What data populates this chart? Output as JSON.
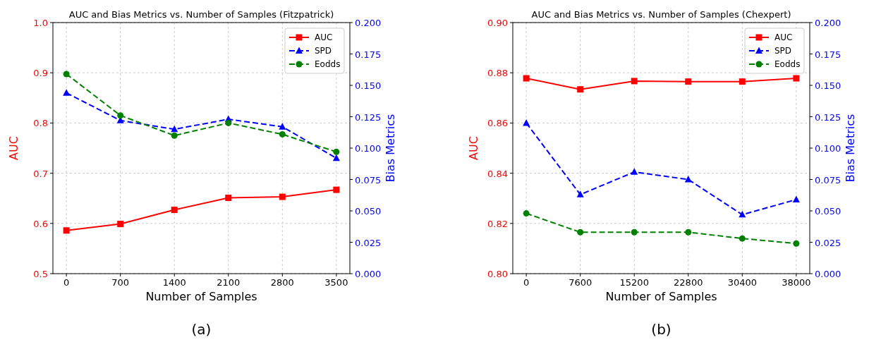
{
  "chart_data": [
    {
      "type": "line",
      "title": "AUC and Bias Metrics vs. Number of Samples (Fitzpatrick)",
      "xlabel": "Number of Samples",
      "ylabel": "AUC",
      "y2label": "Bias Metrics",
      "annotations": [
        "(a)"
      ],
      "x": [
        0,
        700,
        1400,
        2100,
        2800,
        3500
      ],
      "series": [
        {
          "name": "AUC",
          "color": "#ff0000",
          "marker": "square",
          "line_style": "solid",
          "values": [
            0.586,
            0.599,
            0.627,
            0.651,
            0.653,
            0.667
          ]
        },
        {
          "name": "SPD",
          "color": "#0000ff",
          "marker": "triangle",
          "line_style": "dashed",
          "axis": "y2",
          "values": [
            0.144,
            0.122,
            0.115,
            0.123,
            0.117,
            0.092
          ]
        },
        {
          "name": "Eodds",
          "color": "#008000",
          "marker": "circle",
          "line_style": "dashed",
          "axis": "y2",
          "values": [
            0.159,
            0.126,
            0.11,
            0.12,
            0.111,
            0.097
          ]
        }
      ],
      "xlim": [
        -175,
        3675
      ],
      "xticks": [
        0,
        700,
        1400,
        2100,
        2800,
        3500
      ],
      "ylim": [
        0.5,
        1.0
      ],
      "yticks": [
        0.5,
        0.6,
        0.7,
        0.8,
        0.9,
        {
          "value": 1,
          "label": "1.0"
        }
      ],
      "y2lim": [
        0,
        0.2
      ],
      "y2ticks": [
        {
          "value": 0,
          "label": "0.000"
        },
        {
          "value": 0.025,
          "label": "0.025"
        },
        {
          "value": 0.05,
          "label": "0.050"
        },
        {
          "value": 0.075,
          "label": "0.075"
        },
        {
          "value": 0.1,
          "label": "0.100"
        },
        {
          "value": 0.125,
          "label": "0.125"
        },
        {
          "value": 0.15,
          "label": "0.150"
        },
        {
          "value": 0.175,
          "label": "0.175"
        },
        {
          "value": 0.2,
          "label": "0.200"
        }
      ],
      "grid": true,
      "legend": "top right"
    },
    {
      "type": "line",
      "title": "AUC and Bias Metrics vs. Number of Samples (Chexpert)",
      "xlabel": "Number of Samples",
      "ylabel": "AUC",
      "y2label": "Bias Metrics",
      "annotations": [
        "(b)"
      ],
      "x": [
        0,
        7600,
        15200,
        22800,
        30400,
        38000
      ],
      "series": [
        {
          "name": "AUC",
          "color": "#ff0000",
          "marker": "square",
          "line_style": "solid",
          "values": [
            0.8778,
            0.8734,
            0.8767,
            0.8765,
            0.8765,
            0.8778
          ]
        },
        {
          "name": "SPD",
          "color": "#0000ff",
          "marker": "triangle",
          "line_style": "dashed",
          "axis": "y2",
          "values": [
            0.12,
            0.063,
            0.081,
            0.075,
            0.047,
            0.059
          ]
        },
        {
          "name": "Eodds",
          "color": "#008000",
          "marker": "circle",
          "line_style": "dashed",
          "axis": "y2",
          "values": [
            0.048,
            0.033,
            0.033,
            0.033,
            0.028,
            0.024
          ]
        }
      ],
      "xlim": [
        -1900,
        39900
      ],
      "xticks": [
        0,
        7600,
        15200,
        22800,
        30400,
        38000
      ],
      "ylim": [
        0.8,
        0.9
      ],
      "yticks": [
        {
          "value": 0.8,
          "label": "0.80"
        },
        {
          "value": 0.82,
          "label": "0.82"
        },
        {
          "value": 0.84,
          "label": "0.84"
        },
        {
          "value": 0.86,
          "label": "0.86"
        },
        {
          "value": 0.88,
          "label": "0.88"
        },
        {
          "value": 0.9,
          "label": "0.90"
        }
      ],
      "y2lim": [
        0,
        0.2
      ],
      "y2ticks": [
        {
          "value": 0,
          "label": "0.000"
        },
        {
          "value": 0.025,
          "label": "0.025"
        },
        {
          "value": 0.05,
          "label": "0.050"
        },
        {
          "value": 0.075,
          "label": "0.075"
        },
        {
          "value": 0.1,
          "label": "0.100"
        },
        {
          "value": 0.125,
          "label": "0.125"
        },
        {
          "value": 0.15,
          "label": "0.150"
        },
        {
          "value": 0.175,
          "label": "0.175"
        },
        {
          "value": 0.2,
          "label": "0.200"
        }
      ],
      "grid": true,
      "legend": "top right"
    }
  ]
}
